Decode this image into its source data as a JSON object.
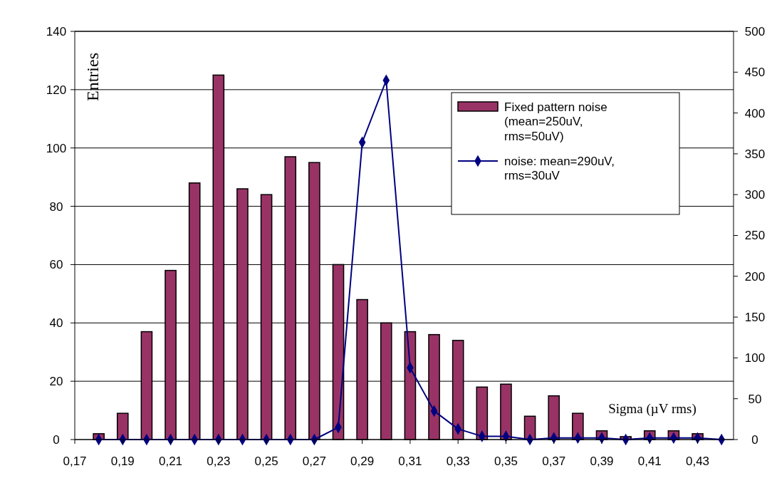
{
  "chart_data": {
    "type": "bar",
    "xlabel": "Sigma (µV rms)",
    "ylabel": "Entries",
    "xlim": [
      0.17,
      0.445
    ],
    "xticks": [
      {
        "value": 0.17,
        "label": "0,17"
      },
      {
        "value": 0.19,
        "label": "0,19"
      },
      {
        "value": 0.21,
        "label": "0,21"
      },
      {
        "value": 0.23,
        "label": "0,23"
      },
      {
        "value": 0.25,
        "label": "0,25"
      },
      {
        "value": 0.27,
        "label": "0,27"
      },
      {
        "value": 0.29,
        "label": "0,29"
      },
      {
        "value": 0.31,
        "label": "0,31"
      },
      {
        "value": 0.33,
        "label": "0,33"
      },
      {
        "value": 0.35,
        "label": "0,35"
      },
      {
        "value": 0.37,
        "label": "0,37"
      },
      {
        "value": 0.39,
        "label": "0,39"
      },
      {
        "value": 0.41,
        "label": "0,41"
      },
      {
        "value": 0.43,
        "label": "0,43"
      }
    ],
    "ylim": [
      0,
      140
    ],
    "yticks": [
      0,
      20,
      40,
      60,
      80,
      100,
      120,
      140
    ],
    "y2lim": [
      0,
      500
    ],
    "y2ticks": [
      0,
      50,
      100,
      150,
      200,
      250,
      300,
      350,
      400,
      450,
      500
    ],
    "grid": "y",
    "legend": "top right",
    "series": [
      {
        "name": "Fixed pattern noise (mean=250uV, rms=50uV)",
        "color": "#993366",
        "x": [
          0.18,
          0.19,
          0.2,
          0.21,
          0.22,
          0.23,
          0.24,
          0.25,
          0.26,
          0.27,
          0.28,
          0.29,
          0.3,
          0.31,
          0.32,
          0.33,
          0.34,
          0.35,
          0.36,
          0.37,
          0.38,
          0.39,
          0.4,
          0.41,
          0.42,
          0.43
        ],
        "values": [
          2,
          9,
          37,
          58,
          88,
          125,
          86,
          84,
          97,
          95,
          60,
          48,
          40,
          37,
          36,
          34,
          18,
          19,
          8,
          15,
          9,
          3,
          1,
          3,
          3,
          2
        ]
      },
      {
        "type": "line",
        "axis": "y2",
        "marker": "diamond",
        "line_style": "solid",
        "name": "noise: mean=290uV, rms=30uV",
        "color": "#000080",
        "x": [
          0.18,
          0.19,
          0.2,
          0.21,
          0.22,
          0.23,
          0.24,
          0.25,
          0.26,
          0.27,
          0.28,
          0.29,
          0.3,
          0.31,
          0.32,
          0.33,
          0.34,
          0.35,
          0.36,
          0.37,
          0.38,
          0.39,
          0.4,
          0.41,
          0.42,
          0.43,
          0.44
        ],
        "values": [
          0,
          0,
          0,
          0,
          0,
          0,
          0,
          0,
          0,
          0,
          15,
          364,
          440,
          88,
          35,
          13,
          4,
          4,
          0,
          2,
          2,
          2,
          0,
          2,
          2,
          2,
          0
        ]
      }
    ]
  }
}
